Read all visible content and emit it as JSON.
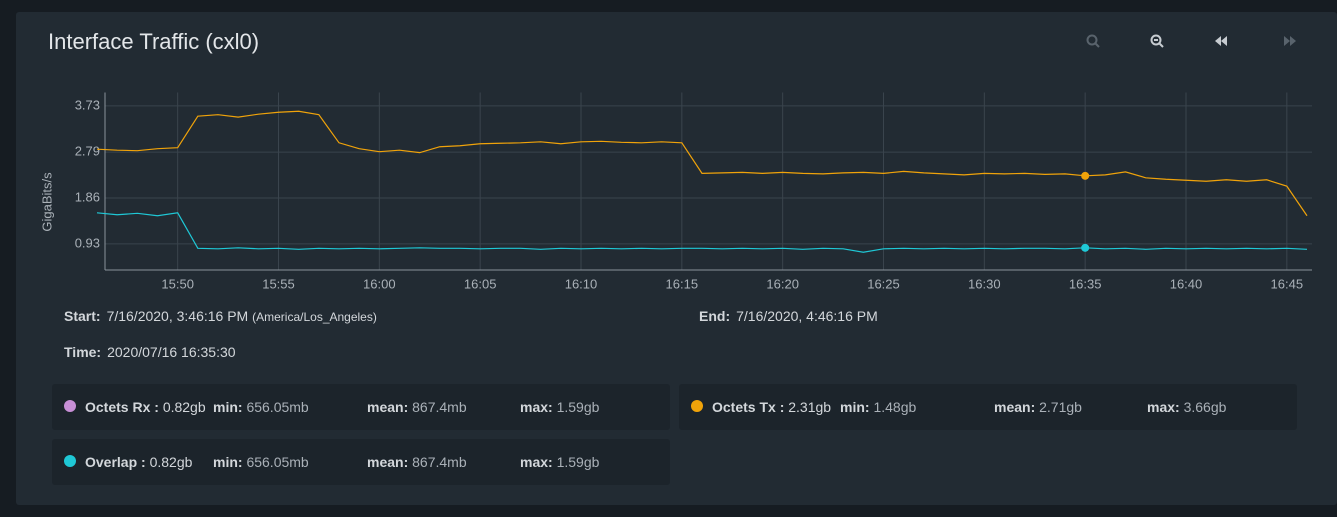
{
  "header": {
    "title": "Interface Traffic (cxl0)"
  },
  "chart_data": {
    "type": "line",
    "y_label": "GigaBits/s",
    "x": [
      "15:46",
      "15:47",
      "15:48",
      "15:49",
      "15:50",
      "15:51",
      "15:52",
      "15:53",
      "15:54",
      "15:55",
      "15:56",
      "15:57",
      "15:58",
      "15:59",
      "16:00",
      "16:01",
      "16:02",
      "16:03",
      "16:04",
      "16:05",
      "16:06",
      "16:07",
      "16:08",
      "16:09",
      "16:10",
      "16:11",
      "16:12",
      "16:13",
      "16:14",
      "16:15",
      "16:16",
      "16:17",
      "16:18",
      "16:19",
      "16:20",
      "16:21",
      "16:22",
      "16:23",
      "16:24",
      "16:25",
      "16:26",
      "16:27",
      "16:28",
      "16:29",
      "16:30",
      "16:31",
      "16:32",
      "16:33",
      "16:34",
      "16:35",
      "16:36",
      "16:37",
      "16:38",
      "16:39",
      "16:40",
      "16:41",
      "16:42",
      "16:43",
      "16:44",
      "16:45",
      "16:46"
    ],
    "series": [
      {
        "name": "Octets Tx",
        "color": "#f0a30a",
        "values": [
          2.85,
          2.83,
          2.82,
          2.86,
          2.88,
          3.52,
          3.55,
          3.5,
          3.56,
          3.6,
          3.62,
          3.55,
          2.98,
          2.86,
          2.8,
          2.83,
          2.78,
          2.9,
          2.92,
          2.96,
          2.97,
          2.98,
          3.0,
          2.96,
          3.0,
          3.01,
          2.99,
          2.98,
          3.0,
          2.98,
          2.36,
          2.37,
          2.38,
          2.36,
          2.38,
          2.36,
          2.35,
          2.37,
          2.38,
          2.36,
          2.4,
          2.37,
          2.35,
          2.33,
          2.36,
          2.35,
          2.36,
          2.34,
          2.35,
          2.31,
          2.33,
          2.39,
          2.27,
          2.24,
          2.22,
          2.2,
          2.23,
          2.2,
          2.23,
          2.1,
          1.5
        ]
      },
      {
        "name": "Overlap",
        "color": "#1fc8d6",
        "values": [
          1.56,
          1.52,
          1.55,
          1.5,
          1.56,
          0.84,
          0.83,
          0.85,
          0.83,
          0.84,
          0.82,
          0.84,
          0.83,
          0.84,
          0.83,
          0.84,
          0.85,
          0.84,
          0.84,
          0.83,
          0.84,
          0.84,
          0.82,
          0.84,
          0.83,
          0.84,
          0.83,
          0.84,
          0.83,
          0.84,
          0.84,
          0.83,
          0.84,
          0.83,
          0.84,
          0.82,
          0.84,
          0.83,
          0.76,
          0.83,
          0.84,
          0.83,
          0.84,
          0.83,
          0.84,
          0.83,
          0.84,
          0.84,
          0.83,
          0.85,
          0.83,
          0.84,
          0.82,
          0.84,
          0.83,
          0.84,
          0.83,
          0.84,
          0.83,
          0.84,
          0.82
        ]
      }
    ],
    "hover_x": "16:35",
    "xlim": [
      "15:46",
      "16:46"
    ],
    "xticks": [
      "15:50",
      "15:55",
      "16:00",
      "16:05",
      "16:10",
      "16:15",
      "16:20",
      "16:25",
      "16:30",
      "16:35",
      "16:40",
      "16:45"
    ],
    "ylim": [
      0.4,
      4.0
    ],
    "yticks": [
      0.93,
      1.86,
      2.79,
      3.73
    ],
    "grid": true
  },
  "info": {
    "start": {
      "label": "Start:",
      "value": "7/16/2020, 3:46:16 PM",
      "zone": "(America/Los_Angeles)"
    },
    "end": {
      "label": "End:",
      "value": "7/16/2020, 4:46:16 PM"
    },
    "time": {
      "label": "Time:",
      "value": "2020/07/16 16:35:30"
    }
  },
  "legend": {
    "items": [
      {
        "name": "Octets Rx :",
        "current": "0.82gb",
        "color": "#c78fd6",
        "stats": [
          {
            "label": "min:",
            "value": "656.05mb"
          },
          {
            "label": "mean:",
            "value": "867.4mb"
          },
          {
            "label": "max:",
            "value": "1.59gb"
          }
        ]
      },
      {
        "name": "Octets Tx :",
        "current": "2.31gb",
        "color": "#f0a30a",
        "stats": [
          {
            "label": "min:",
            "value": "1.48gb"
          },
          {
            "label": "mean:",
            "value": "2.71gb"
          },
          {
            "label": "max:",
            "value": "3.66gb"
          }
        ]
      },
      {
        "name": "Overlap :",
        "current": "0.82gb",
        "color": "#1fc8d6",
        "stats": [
          {
            "label": "min:",
            "value": "656.05mb"
          },
          {
            "label": "mean:",
            "value": "867.4mb"
          },
          {
            "label": "max:",
            "value": "1.59gb"
          }
        ]
      }
    ]
  }
}
